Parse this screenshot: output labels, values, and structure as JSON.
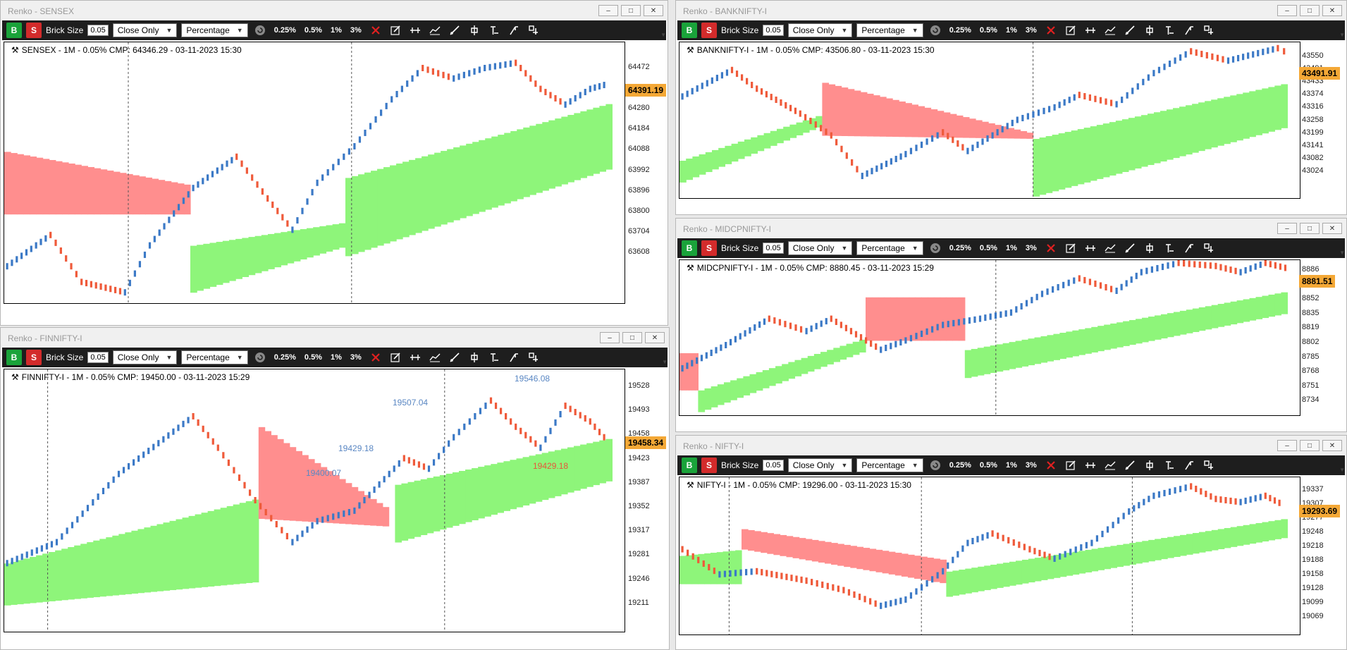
{
  "colors": {
    "up": "#3b79c6",
    "down": "#ef5a3a",
    "green_zone": "#8ef57a",
    "red_zone": "#ff8e8e",
    "price_tag": "#f4a836"
  },
  "toolbar": {
    "buy": "B",
    "sell": "S",
    "brick_size_label": "Brick Size",
    "brick_size_value": "0.05",
    "mode_select": "Close Only",
    "type_select": "Percentage",
    "pct_buttons": [
      "0.25%",
      "0.5%",
      "1%",
      "3%"
    ]
  },
  "windows": [
    {
      "id": "sensex",
      "title": "Renko - SENSEX",
      "info": "SENSEX - 1M - 0.05% CMP: 64346.29 - 03-11-2023 15:30",
      "price_tag": "64391.19",
      "ticks": [
        "64472",
        "64376",
        "64280",
        "64184",
        "64088",
        "63992",
        "63896",
        "63800",
        "63704",
        "63608"
      ],
      "annotations": []
    },
    {
      "id": "finnifty",
      "title": "Renko - FINNIFTY-I",
      "info": "FINNIFTY-I - 1M - 0.05% CMP: 19450.00 - 03-11-2023 15:29",
      "price_tag": "19458.34",
      "ticks": [
        "19528",
        "19493",
        "19458",
        "19423",
        "19387",
        "19352",
        "19317",
        "19281",
        "19246",
        "19211"
      ],
      "annotations": [
        {
          "text": "19400.07",
          "color": "blue"
        },
        {
          "text": "19429.18",
          "color": "blue"
        },
        {
          "text": "19507.04",
          "color": "blue"
        },
        {
          "text": "19546.08",
          "color": "blue"
        },
        {
          "text": "19429.18",
          "color": "red"
        }
      ]
    },
    {
      "id": "banknifty",
      "title": "Renko - BANKNIFTY-I",
      "info": "BANKNIFTY-I - 1M - 0.05% CMP: 43506.80 - 03-11-2023 15:30",
      "price_tag": "43491.91",
      "ticks": [
        "43550",
        "43491",
        "43433",
        "43374",
        "43316",
        "43258",
        "43199",
        "43141",
        "43082",
        "43024"
      ],
      "annotations": []
    },
    {
      "id": "midcpnifty",
      "title": "Renko - MIDCPNIFTY-I",
      "info": "MIDCPNIFTY-I - 1M - 0.05% CMP: 8880.45 - 03-11-2023 15:29",
      "price_tag": "8881.51",
      "ticks": [
        "8886",
        "8869",
        "8852",
        "8835",
        "8819",
        "8802",
        "8785",
        "8768",
        "8751",
        "8734"
      ],
      "annotations": []
    },
    {
      "id": "nifty",
      "title": "Renko - NIFTY-I",
      "info": "NIFTY-I - 1M - 0.05% CMP: 19296.00 - 03-11-2023 15:30",
      "price_tag": "19293.69",
      "ticks": [
        "19337",
        "19307",
        "19277",
        "19248",
        "19218",
        "19188",
        "19158",
        "19128",
        "19099",
        "19069"
      ],
      "annotations": []
    }
  ]
}
